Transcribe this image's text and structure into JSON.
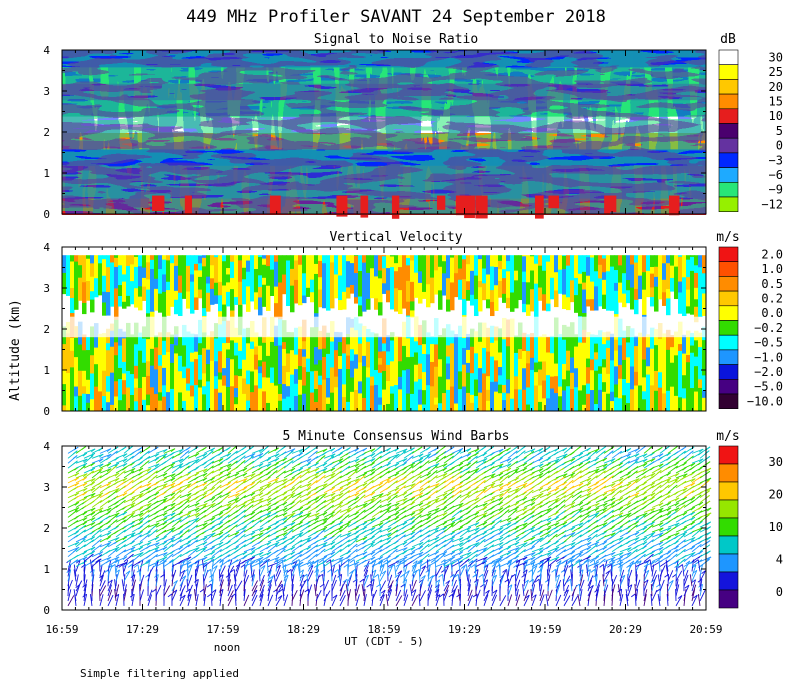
{
  "title": "449 MHz Profiler SAVANT 24 September 2018",
  "y_axis_label": "Altitude (km)",
  "x_axis_label": "UT  (CDT - 5)",
  "noon_label": "noon",
  "footnote": "Simple filtering applied",
  "chart_data": [
    {
      "type": "heatmap",
      "title": "Signal to Noise Ratio",
      "units": "dB",
      "xlabel": "UT  (CDT - 5)",
      "ylabel": "Altitude (km)",
      "ylim": [
        0,
        4
      ],
      "y_ticks": [
        "0",
        "1",
        "2",
        "3",
        "4"
      ],
      "x_ticks": [
        "16:59",
        "17:29",
        "17:59",
        "18:29",
        "18:59",
        "19:29",
        "19:59",
        "20:29",
        "20:59"
      ],
      "colorbar_labels": [
        "30",
        "25",
        "20",
        "15",
        "10",
        "5",
        "0",
        "−3",
        "−6",
        "−9",
        "−12"
      ],
      "colorbar_colors": [
        "#ffffff",
        "#ffff00",
        "#ffc800",
        "#ff8c00",
        "#e61e1e",
        "#4a006e",
        "#6432a0",
        "#0028ff",
        "#1eaaff",
        "#28e678",
        "#96f000"
      ],
      "altitude_profile": [
        {
          "altitude_km": 0.2,
          "snr_db": 10
        },
        {
          "altitude_km": 0.6,
          "snr_db": 2
        },
        {
          "altitude_km": 1.0,
          "snr_db": 0
        },
        {
          "altitude_km": 1.4,
          "snr_db": -3
        },
        {
          "altitude_km": 1.8,
          "snr_db": 15
        },
        {
          "altitude_km": 2.2,
          "snr_db": 30
        },
        {
          "altitude_km": 2.6,
          "snr_db": -9
        },
        {
          "altitude_km": 3.0,
          "snr_db": 0
        },
        {
          "altitude_km": 3.4,
          "snr_db": -9
        },
        {
          "altitude_km": 3.8,
          "snr_db": -3
        }
      ]
    },
    {
      "type": "heatmap",
      "title": "Vertical Velocity",
      "units": "m/s",
      "ylim": [
        0,
        4
      ],
      "y_ticks": [
        "0",
        "1",
        "2",
        "3",
        "4"
      ],
      "colorbar_labels": [
        "2.0",
        "1.0",
        "0.5",
        "0.2",
        "0.0",
        "−0.2",
        "−0.5",
        "−1.0",
        "−2.0",
        "−5.0",
        "−10.0"
      ],
      "colorbar_colors": [
        "#f01414",
        "#ff5000",
        "#ff8c00",
        "#ffc800",
        "#ffff00",
        "#32dc00",
        "#00ffff",
        "#1e96ff",
        "#0a14dc",
        "#460082",
        "#320032"
      ],
      "altitude_profile": [
        {
          "altitude_km": 0.5,
          "w_ms": 0.2
        },
        {
          "altitude_km": 1.0,
          "w_ms": -0.2
        },
        {
          "altitude_km": 1.5,
          "w_ms": 0.0
        },
        {
          "altitude_km": 2.0,
          "w_ms": null
        },
        {
          "altitude_km": 2.5,
          "w_ms": -0.2
        },
        {
          "altitude_km": 3.0,
          "w_ms": 0.0
        },
        {
          "altitude_km": 3.5,
          "w_ms": 0.2
        }
      ]
    },
    {
      "type": "wind_barbs",
      "title": "5 Minute Consensus Wind Barbs",
      "units": "m/s",
      "ylim": [
        0,
        4
      ],
      "y_ticks": [
        "0",
        "1",
        "2",
        "3",
        "4"
      ],
      "colorbar_labels": [
        "30",
        "20",
        "10",
        "4",
        "0"
      ],
      "colorbar_colors": [
        "#f01414",
        "#ff8c00",
        "#ffc800",
        "#96e600",
        "#32dc00",
        "#00c8c8",
        "#1e96ff",
        "#1414dc",
        "#460082"
      ],
      "altitude_profile": [
        {
          "altitude_km": 0.3,
          "speed_ms": 3
        },
        {
          "altitude_km": 1.0,
          "speed_ms": 7
        },
        {
          "altitude_km": 2.0,
          "speed_ms": 14
        },
        {
          "altitude_km": 3.0,
          "speed_ms": 22
        },
        {
          "altitude_km": 3.6,
          "speed_ms": 12
        }
      ]
    }
  ]
}
